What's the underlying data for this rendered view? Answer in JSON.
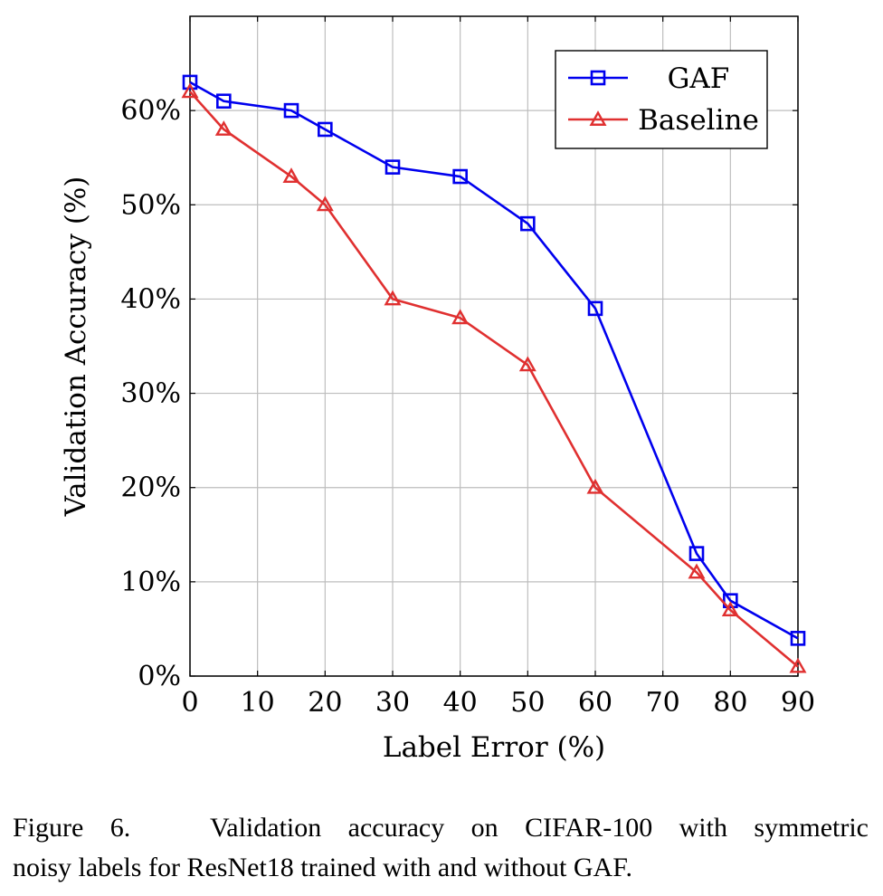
{
  "chart_data": {
    "type": "line",
    "xlabel": "Label Error (%)",
    "ylabel": "Validation Accuracy (%)",
    "xlim": [
      0,
      90
    ],
    "ylim": [
      0,
      70
    ],
    "xticks": [
      0,
      10,
      20,
      30,
      40,
      50,
      60,
      70,
      80,
      90
    ],
    "xtick_labels": [
      "0",
      "10",
      "20",
      "30",
      "40",
      "50",
      "60",
      "70",
      "80",
      "90"
    ],
    "yticks": [
      0,
      10,
      20,
      30,
      40,
      50,
      60
    ],
    "ytick_labels": [
      "0%",
      "10%",
      "20%",
      "30%",
      "40%",
      "50%",
      "60%"
    ],
    "grid": true,
    "legend_position": "top-right",
    "series": [
      {
        "name": "GAF",
        "color": "#0000ee",
        "marker": "square",
        "x": [
          0,
          5,
          15,
          20,
          30,
          40,
          50,
          60,
          75,
          80,
          90
        ],
        "y": [
          63,
          61,
          60,
          58,
          54,
          53,
          48,
          39,
          13,
          8,
          4
        ]
      },
      {
        "name": "Baseline",
        "color": "#e03030",
        "marker": "triangle",
        "x": [
          0,
          5,
          15,
          20,
          30,
          40,
          50,
          60,
          75,
          80,
          90
        ],
        "y": [
          62,
          58,
          53,
          50,
          40,
          38,
          33,
          20,
          11,
          7,
          1
        ]
      }
    ]
  },
  "caption": {
    "line1": "Figure 6.   Validation accuracy on CIFAR-100 with symmetric",
    "line2": "noisy labels for ResNet18 trained with and without GAF."
  }
}
